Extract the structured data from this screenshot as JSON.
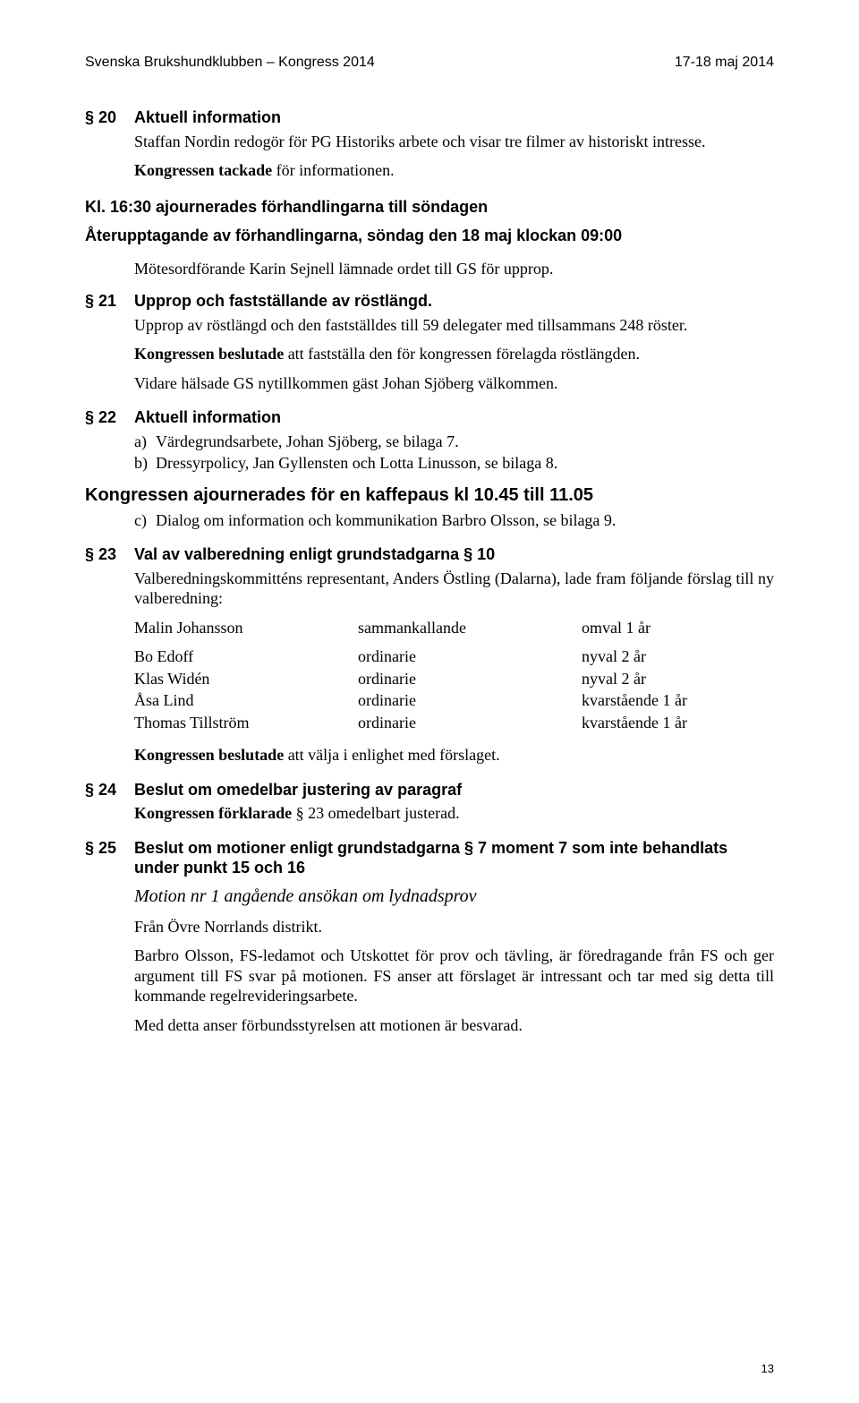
{
  "header": {
    "left": "Svenska Brukshundklubben – Kongress 2014",
    "right": "17-18 maj 2014"
  },
  "s20": {
    "num": "§ 20",
    "heading": "Aktuell information",
    "p1": "Staffan Nordin redogör för PG Historiks arbete och visar tre filmer av historiskt intresse.",
    "p2_bold": "Kongressen tackade",
    "p2_rest": " för informationen."
  },
  "ajourn": {
    "line": "Kl. 16:30 ajournerades förhandlingarna till söndagen",
    "resume": "Återupptagande av förhandlingarna, söndag den 18 maj klockan 09:00",
    "indent": "Mötesordförande Karin Sejnell lämnade ordet till GS för upprop."
  },
  "s21": {
    "num": "§ 21",
    "heading": "Upprop och fastställande av röstlängd.",
    "p1": "Upprop av röstlängd och den fastställdes till 59 delegater med tillsammans 248 röster.",
    "p2_bold": "Kongressen beslutade",
    "p2_rest": " att fastställa den för kongressen förelagda röstlängden.",
    "p3": "Vidare hälsade GS nytillkommen gäst Johan Sjöberg välkommen."
  },
  "s22": {
    "num": "§ 22",
    "heading": "Aktuell information",
    "a_marker": "a)",
    "a_text": "Värdegrundsarbete, Johan Sjöberg, se bilaga 7.",
    "b_marker": "b)",
    "b_text": "Dressyrpolicy, Jan Gyllensten och Lotta Linusson, se bilaga 8."
  },
  "kaffe": {
    "heading": "Kongressen ajournerades för en kaffepaus kl 10.45 till 11.05",
    "c_marker": "c)",
    "c_text": "Dialog om information och kommunikation Barbro Olsson, se bilaga 9."
  },
  "s23": {
    "num": "§ 23",
    "heading": "Val av valberedning enligt grundstadgarna § 10",
    "intro": "Valberedningskommitténs representant, Anders Östling (Dalarna), lade fram följande förslag till ny valberedning:",
    "rows": [
      [
        "Malin Johansson",
        "sammankallande",
        "omval 1 år"
      ],
      [
        "Bo Edoff",
        "ordinarie",
        "nyval 2 år"
      ],
      [
        "Klas Widén",
        "ordinarie",
        "nyval 2 år"
      ],
      [
        "Åsa Lind",
        "ordinarie",
        "kvarstående 1 år"
      ],
      [
        "Thomas Tillström",
        "ordinarie",
        "kvarstående 1 år"
      ]
    ],
    "closing_bold": "Kongressen beslutade",
    "closing_rest": " att välja i enlighet med förslaget."
  },
  "s24": {
    "num": "§ 24",
    "heading": "Beslut om omedelbar justering av paragraf",
    "p1_bold": "Kongressen förklarade",
    "p1_rest": " § 23 omedelbart justerad."
  },
  "s25": {
    "num": "§ 25",
    "heading": "Beslut om motioner enligt grundstadgarna § 7 moment 7 som inte behandlats under punkt 15 och 16",
    "sub_italic": "Motion nr 1 angående ansökan om lydnadsprov",
    "from": "Från Övre Norrlands distrikt.",
    "p1": "Barbro Olsson, FS-ledamot och Utskottet för prov och tävling, är föredragande från FS och ger argument till FS svar på motionen. FS anser att förslaget är intressant och tar med sig detta till kommande regelrevideringsarbete.",
    "p2": "Med detta anser förbundsstyrelsen att motionen är besvarad."
  },
  "page_number": "13"
}
